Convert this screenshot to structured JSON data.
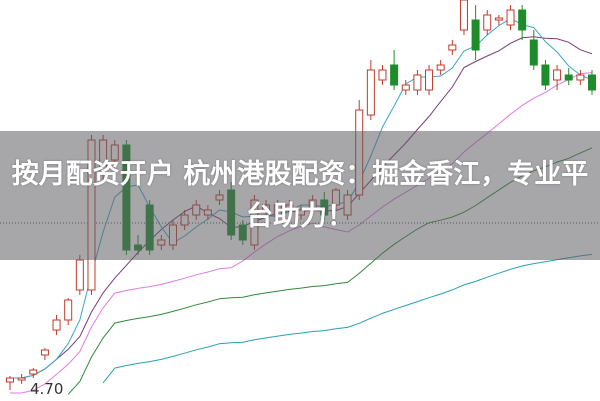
{
  "title": "按月配资开户 杭州港股配资：掘金香江，专业平台助力！",
  "chart_data": {
    "type": "candlestick",
    "price_label": "4.70",
    "ylim": [
      4.6,
      8.6
    ],
    "grid": false,
    "reference_line": 6.37,
    "colors": {
      "up": "#c0392b",
      "down": "#1e8c2a",
      "ma5": "#3aa6c4",
      "ma10": "#7a3a7a",
      "ma20": "#e07ae0",
      "ma60": "#2e8b3a",
      "ma120": "#2aa0b0"
    },
    "candles": [
      [
        4.78,
        4.84,
        4.7,
        4.82
      ],
      [
        4.8,
        4.86,
        4.76,
        4.82
      ],
      [
        4.86,
        4.92,
        4.82,
        4.9
      ],
      [
        5.05,
        5.12,
        5.0,
        5.1
      ],
      [
        5.3,
        5.45,
        5.25,
        5.4
      ],
      [
        5.4,
        5.62,
        5.35,
        5.6
      ],
      [
        5.7,
        6.05,
        5.65,
        6.0
      ],
      [
        5.7,
        7.25,
        5.65,
        7.2
      ],
      [
        6.9,
        7.25,
        6.8,
        7.2
      ],
      [
        7.0,
        7.2,
        6.95,
        7.15
      ],
      [
        7.15,
        7.2,
        6.05,
        6.1
      ],
      [
        6.15,
        6.25,
        6.05,
        6.1
      ],
      [
        6.55,
        6.6,
        6.05,
        6.1
      ],
      [
        6.15,
        6.25,
        6.1,
        6.2
      ],
      [
        6.15,
        6.4,
        6.1,
        6.35
      ],
      [
        6.35,
        6.5,
        6.3,
        6.45
      ],
      [
        6.45,
        6.6,
        6.4,
        6.55
      ],
      [
        6.45,
        6.55,
        6.4,
        6.5
      ],
      [
        6.6,
        6.7,
        6.55,
        6.65
      ],
      [
        6.7,
        6.78,
        6.2,
        6.25
      ],
      [
        6.35,
        6.4,
        6.15,
        6.2
      ],
      [
        6.15,
        6.65,
        6.1,
        6.6
      ],
      [
        6.5,
        6.6,
        6.45,
        6.55
      ],
      [
        6.45,
        6.6,
        6.4,
        6.55
      ],
      [
        6.5,
        6.6,
        6.48,
        6.55
      ],
      [
        6.45,
        6.55,
        6.4,
        6.5
      ],
      [
        6.5,
        6.65,
        6.45,
        6.6
      ],
      [
        6.6,
        6.68,
        6.4,
        6.45
      ],
      [
        6.55,
        6.72,
        6.5,
        6.7
      ],
      [
        6.45,
        6.7,
        6.4,
        6.65
      ],
      [
        6.65,
        7.6,
        6.6,
        7.5
      ],
      [
        7.45,
        8.0,
        7.4,
        7.9
      ],
      [
        7.8,
        7.95,
        7.75,
        7.9
      ],
      [
        7.95,
        8.1,
        7.7,
        7.75
      ],
      [
        7.7,
        7.8,
        7.65,
        7.75
      ],
      [
        7.7,
        7.9,
        7.65,
        7.85
      ],
      [
        7.7,
        7.95,
        7.65,
        7.9
      ],
      [
        7.9,
        8.0,
        7.85,
        7.95
      ],
      [
        8.1,
        8.2,
        8.05,
        8.15
      ],
      [
        8.3,
        8.6,
        8.25,
        8.6
      ],
      [
        8.4,
        8.55,
        8.0,
        8.1
      ],
      [
        8.3,
        8.5,
        8.25,
        8.45
      ],
      [
        8.4,
        8.45,
        8.35,
        8.42
      ],
      [
        8.35,
        8.55,
        8.3,
        8.5
      ],
      [
        8.5,
        8.55,
        8.2,
        8.3
      ],
      [
        8.2,
        8.3,
        7.9,
        7.95
      ],
      [
        7.95,
        8.0,
        7.7,
        7.75
      ],
      [
        7.8,
        7.95,
        7.7,
        7.9
      ],
      [
        7.85,
        7.92,
        7.75,
        7.8
      ],
      [
        7.8,
        7.9,
        7.75,
        7.85
      ],
      [
        7.85,
        7.9,
        7.65,
        7.7
      ]
    ]
  }
}
